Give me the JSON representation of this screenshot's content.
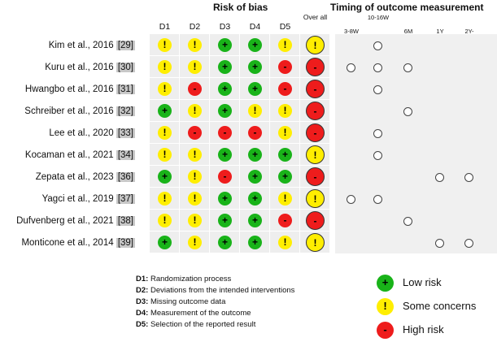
{
  "headers": {
    "risk_of_bias": "Risk of bias",
    "timing": "Timing of outcome measurement"
  },
  "domains": [
    "D1",
    "D2",
    "D3",
    "D4",
    "D5"
  ],
  "overall_label": "Over all",
  "timing_columns": [
    "3-8W",
    "10-16W",
    "6M",
    "1Y",
    "2Y-"
  ],
  "studies": [
    {
      "author": "Kim et al., 2016",
      "ref": "[29]",
      "ratings": [
        "y",
        "y",
        "g",
        "g",
        "y"
      ],
      "overall": "y",
      "timing": [
        false,
        true,
        false,
        false,
        false
      ]
    },
    {
      "author": "Kuru et al., 2016",
      "ref": "[30]",
      "ratings": [
        "y",
        "y",
        "g",
        "g",
        "r"
      ],
      "overall": "r",
      "timing": [
        true,
        true,
        true,
        false,
        false
      ]
    },
    {
      "author": "Hwangbo et al., 2016",
      "ref": "[31]",
      "ratings": [
        "y",
        "r",
        "g",
        "g",
        "r"
      ],
      "overall": "r",
      "timing": [
        false,
        true,
        false,
        false,
        false
      ]
    },
    {
      "author": "Schreiber et al., 2016",
      "ref": "[32]",
      "ratings": [
        "g",
        "y",
        "g",
        "y",
        "y"
      ],
      "overall": "r",
      "timing": [
        false,
        false,
        true,
        false,
        false
      ]
    },
    {
      "author": "Lee et al., 2020",
      "ref": "[33]",
      "ratings": [
        "y",
        "r",
        "r",
        "r",
        "y"
      ],
      "overall": "r",
      "timing": [
        false,
        true,
        false,
        false,
        false
      ]
    },
    {
      "author": "Kocaman et al., 2021",
      "ref": "[34]",
      "ratings": [
        "y",
        "y",
        "g",
        "g",
        "g"
      ],
      "overall": "y",
      "timing": [
        false,
        true,
        false,
        false,
        false
      ]
    },
    {
      "author": "Zepata et al., 2023",
      "ref": "[36]",
      "ratings": [
        "g",
        "y",
        "r",
        "g",
        "g"
      ],
      "overall": "r",
      "timing": [
        false,
        false,
        false,
        true,
        true
      ]
    },
    {
      "author": "Yagci et al., 2019",
      "ref": "[37]",
      "ratings": [
        "y",
        "y",
        "g",
        "g",
        "y"
      ],
      "overall": "y",
      "timing": [
        true,
        true,
        false,
        false,
        false
      ]
    },
    {
      "author": "Dufvenberg et al., 2021",
      "ref": "[38]",
      "ratings": [
        "y",
        "y",
        "g",
        "g",
        "r"
      ],
      "overall": "r",
      "timing": [
        false,
        false,
        true,
        false,
        false
      ]
    },
    {
      "author": "Monticone et al., 2014",
      "ref": "[39]",
      "ratings": [
        "g",
        "y",
        "g",
        "g",
        "y"
      ],
      "overall": "y",
      "timing": [
        false,
        false,
        false,
        true,
        true
      ]
    }
  ],
  "symbols": {
    "g": "+",
    "y": "!",
    "r": "-"
  },
  "colors": {
    "low": "#19b319",
    "some": "#ffee00",
    "high": "#ee1c1c"
  },
  "domain_legend": [
    {
      "key": "D1:",
      "text": "Randomization process"
    },
    {
      "key": "D2:",
      "text": "Deviations from the intended interventions"
    },
    {
      "key": "D3:",
      "text": "Missing outcome data"
    },
    {
      "key": "D4:",
      "text": "Measurement of the outcome"
    },
    {
      "key": "D5:",
      "text": "Selection of the reported result"
    }
  ],
  "risk_legend": [
    {
      "level": "g",
      "label": "Low risk"
    },
    {
      "level": "y",
      "label": "Some concerns"
    },
    {
      "level": "r",
      "label": "High risk"
    }
  ]
}
